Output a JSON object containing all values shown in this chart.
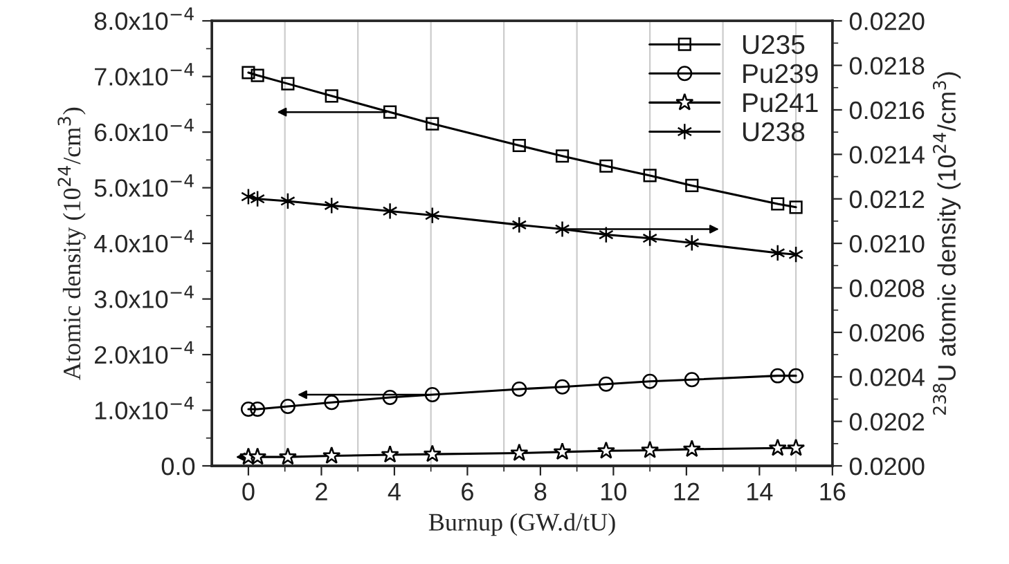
{
  "chart_data": {
    "type": "line",
    "xlabel": "Burnup (GW.d/tU)",
    "ylabel": "Atomic density (10$^{24}$/cm$^{3}$)",
    "y2label": "$^{238}$U atomic density (10$^{24}$/cm$^{3}$)",
    "x": [
      0,
      0.25,
      1.08,
      2.28,
      3.88,
      5.04,
      7.42,
      8.6,
      9.8,
      11.0,
      12.15,
      14.5,
      15.0
    ],
    "series": [
      {
        "name": "U235",
        "color": "#000000",
        "marker": "square",
        "values": [
          0.000707,
          0.000702,
          0.000687,
          0.000665,
          0.000636,
          0.000615,
          0.000576,
          0.000557,
          0.000539,
          0.000522,
          0.000504,
          0.000471,
          0.000465
        ]
      },
      {
        "name": "Pu239",
        "color": "#000000",
        "marker": "circle",
        "values": [
          0.000102,
          0.000102,
          0.000107,
          0.000114,
          0.000123,
          0.000128,
          0.000138,
          0.000142,
          0.000147,
          0.000152,
          0.000155,
          0.000162,
          0.000162
        ]
      },
      {
        "name": "Pu241",
        "color": "#000000",
        "marker": "star",
        "values": [
          1.6e-05,
          1.6e-05,
          1.6e-05,
          1.8e-05,
          2e-05,
          2.1e-05,
          2.3e-05,
          2.5e-05,
          2.7e-05,
          2.8e-05,
          3e-05,
          3.2e-05,
          3.2e-05
        ]
      },
      {
        "name": "U238",
        "color": "#000000",
        "marker": "cross",
        "axis": "y2",
        "values": [
          0.02121,
          0.0212,
          0.02119,
          0.02117,
          0.021145,
          0.021126,
          0.021083,
          0.021064,
          0.021039,
          0.021023,
          0.021002,
          0.020957,
          0.02095
        ]
      }
    ],
    "xlim": [
      -1,
      16
    ],
    "xticks": [
      0,
      2,
      4,
      6,
      8,
      10,
      12,
      14,
      16
    ],
    "ylim": [
      0,
      0.0008
    ],
    "yticks": [
      {
        "value": 0,
        "label": "0.0"
      },
      {
        "value": 0.0001,
        "label": "1.0x10$^{−4}$"
      },
      {
        "value": 0.0002,
        "label": "2.0x10$^{−4}$"
      },
      {
        "value": 0.0003,
        "label": "3.0x10$^{−4}$"
      },
      {
        "value": 0.0004,
        "label": "4.0x10$^{−4}$"
      },
      {
        "value": 0.0005,
        "label": "5.0x10$^{−4}$"
      },
      {
        "value": 0.0006,
        "label": "6.0x10$^{−4}$"
      },
      {
        "value": 0.0007,
        "label": "7.0x10$^{−4}$"
      },
      {
        "value": 0.0008,
        "label": "8.0x10$^{−4}$"
      }
    ],
    "y2lim": [
      0.02,
      0.022
    ],
    "y2ticks": [
      {
        "value": 0.02,
        "label": "0.0200"
      },
      {
        "value": 0.0202,
        "label": "0.0202"
      },
      {
        "value": 0.0204,
        "label": "0.0204"
      },
      {
        "value": 0.0206,
        "label": "0.0206"
      },
      {
        "value": 0.0208,
        "label": "0.0208"
      },
      {
        "value": 0.021,
        "label": "0.0210"
      },
      {
        "value": 0.0212,
        "label": "0.0212"
      },
      {
        "value": 0.0214,
        "label": "0.0214"
      },
      {
        "value": 0.0216,
        "label": "0.0216"
      },
      {
        "value": 0.0218,
        "label": "0.0218"
      },
      {
        "value": 0.022,
        "label": "0.0220"
      }
    ],
    "grid": "x",
    "legend": "top right",
    "line_style": "solid"
  }
}
